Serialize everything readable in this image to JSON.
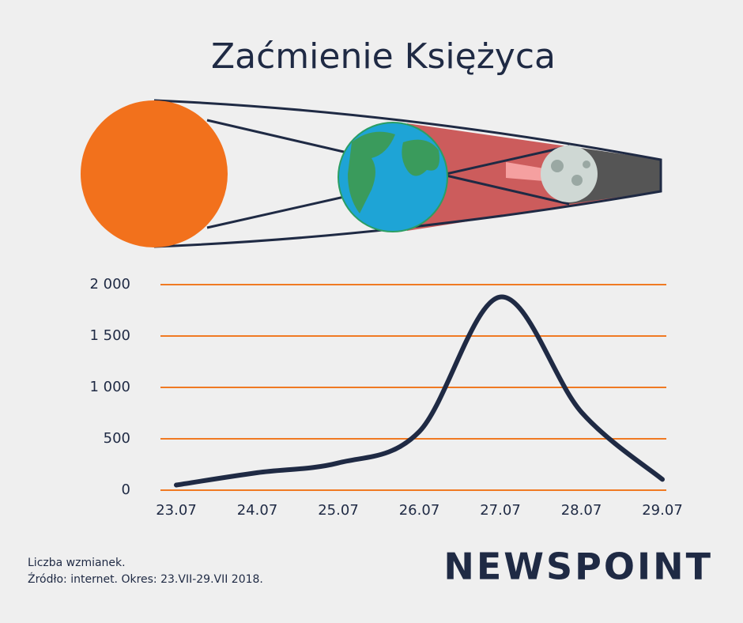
{
  "chart_data": {
    "type": "line",
    "title": "Zaćmienie Księżyca",
    "categories": [
      "23.07",
      "24.07",
      "25.07",
      "26.07",
      "27.07",
      "28.07",
      "29.07"
    ],
    "series": [
      {
        "name": "Liczba wzmianek",
        "color": "#1f2a44",
        "values": [
          50,
          170,
          265,
          570,
          1880,
          760,
          105
        ]
      }
    ],
    "ylim": [
      0,
      2000
    ],
    "yticks": [
      0,
      500,
      {
        "value": 1000,
        "label": "1 000"
      },
      {
        "value": 1500,
        "label": "1 500"
      },
      {
        "value": 2000,
        "label": "2 000"
      }
    ],
    "grid": true,
    "grid_color": "#f07a23",
    "footnote": [
      "Liczba wzmianek.",
      "Źródło: internet. Okres: 23.VII-29.VII 2018."
    ],
    "logo": "NEWSPOINT"
  }
}
